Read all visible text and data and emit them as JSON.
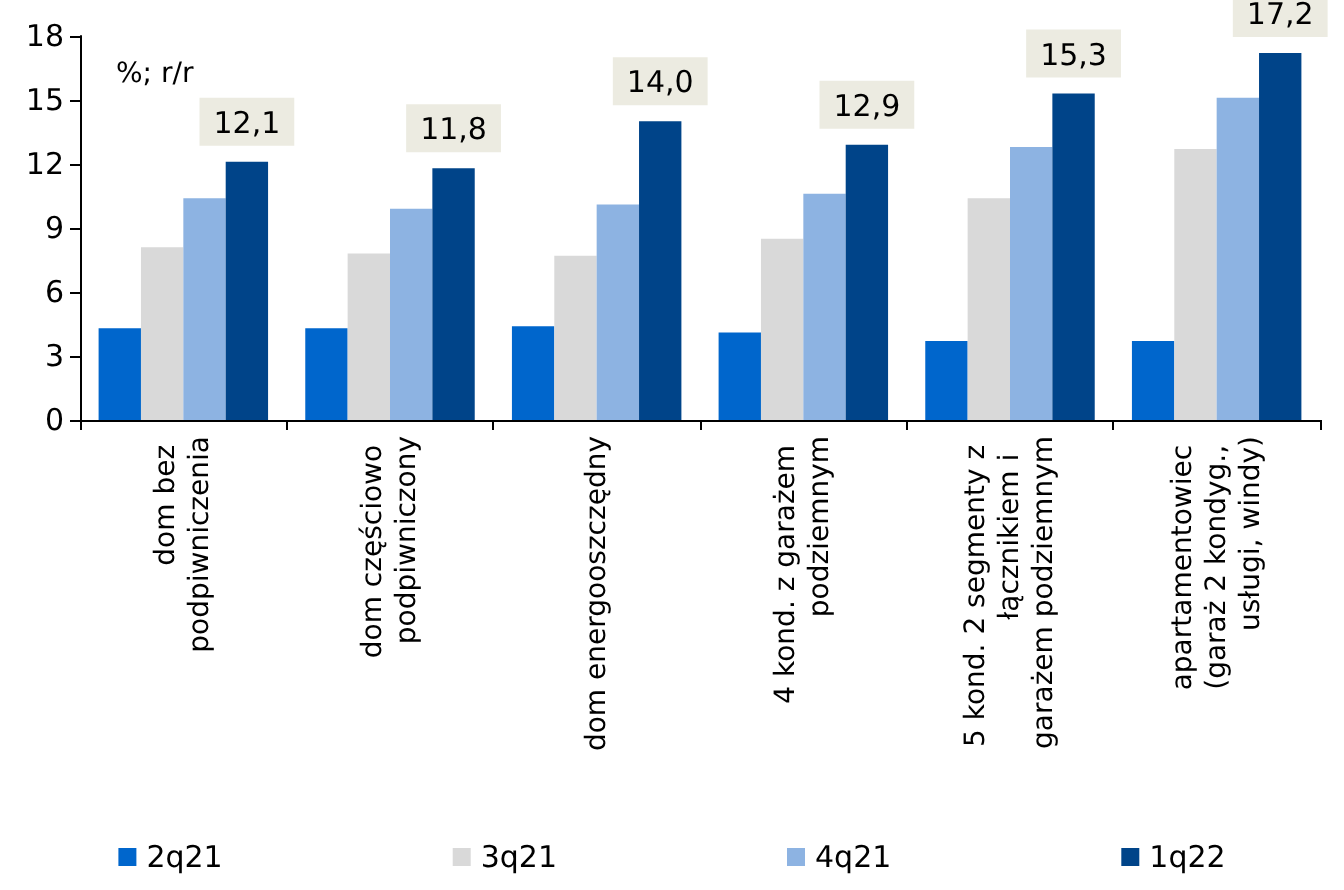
{
  "chart_data": {
    "type": "bar",
    "ylabel": "%; r/r",
    "categories": [
      "dom bez podpiwniczenia",
      "dom częściowo podpiwniczony",
      "dom energooszczędny",
      "4 kond. z garażem podziemnym",
      "5 kond. 2 segmenty z łącznikiem i  garażem podziemnym",
      "apartamentowiec (garaż 2 kondyg., usługi, windy)"
    ],
    "series": [
      {
        "name": "2q21",
        "color": "#0066cc",
        "values": [
          4.3,
          4.3,
          4.4,
          4.1,
          3.7,
          3.7
        ]
      },
      {
        "name": "3q21",
        "color": "#d9d9d9",
        "values": [
          8.1,
          7.8,
          7.7,
          8.5,
          10.4,
          12.7
        ]
      },
      {
        "name": "4q21",
        "color": "#8db3e2",
        "values": [
          10.4,
          9.9,
          10.1,
          10.6,
          12.8,
          15.1
        ]
      },
      {
        "name": "1q22",
        "color": "#004489",
        "values": [
          12.1,
          11.8,
          14.0,
          12.9,
          15.3,
          17.2
        ],
        "value_labels": [
          "12,1",
          "11,8",
          "14,0",
          "12,9",
          "15,3",
          "17,2"
        ]
      }
    ],
    "ylim": [
      0,
      18
    ],
    "yticks": [
      0,
      3,
      6,
      9,
      12,
      15,
      18
    ],
    "grid": false,
    "legend": "bottom"
  }
}
